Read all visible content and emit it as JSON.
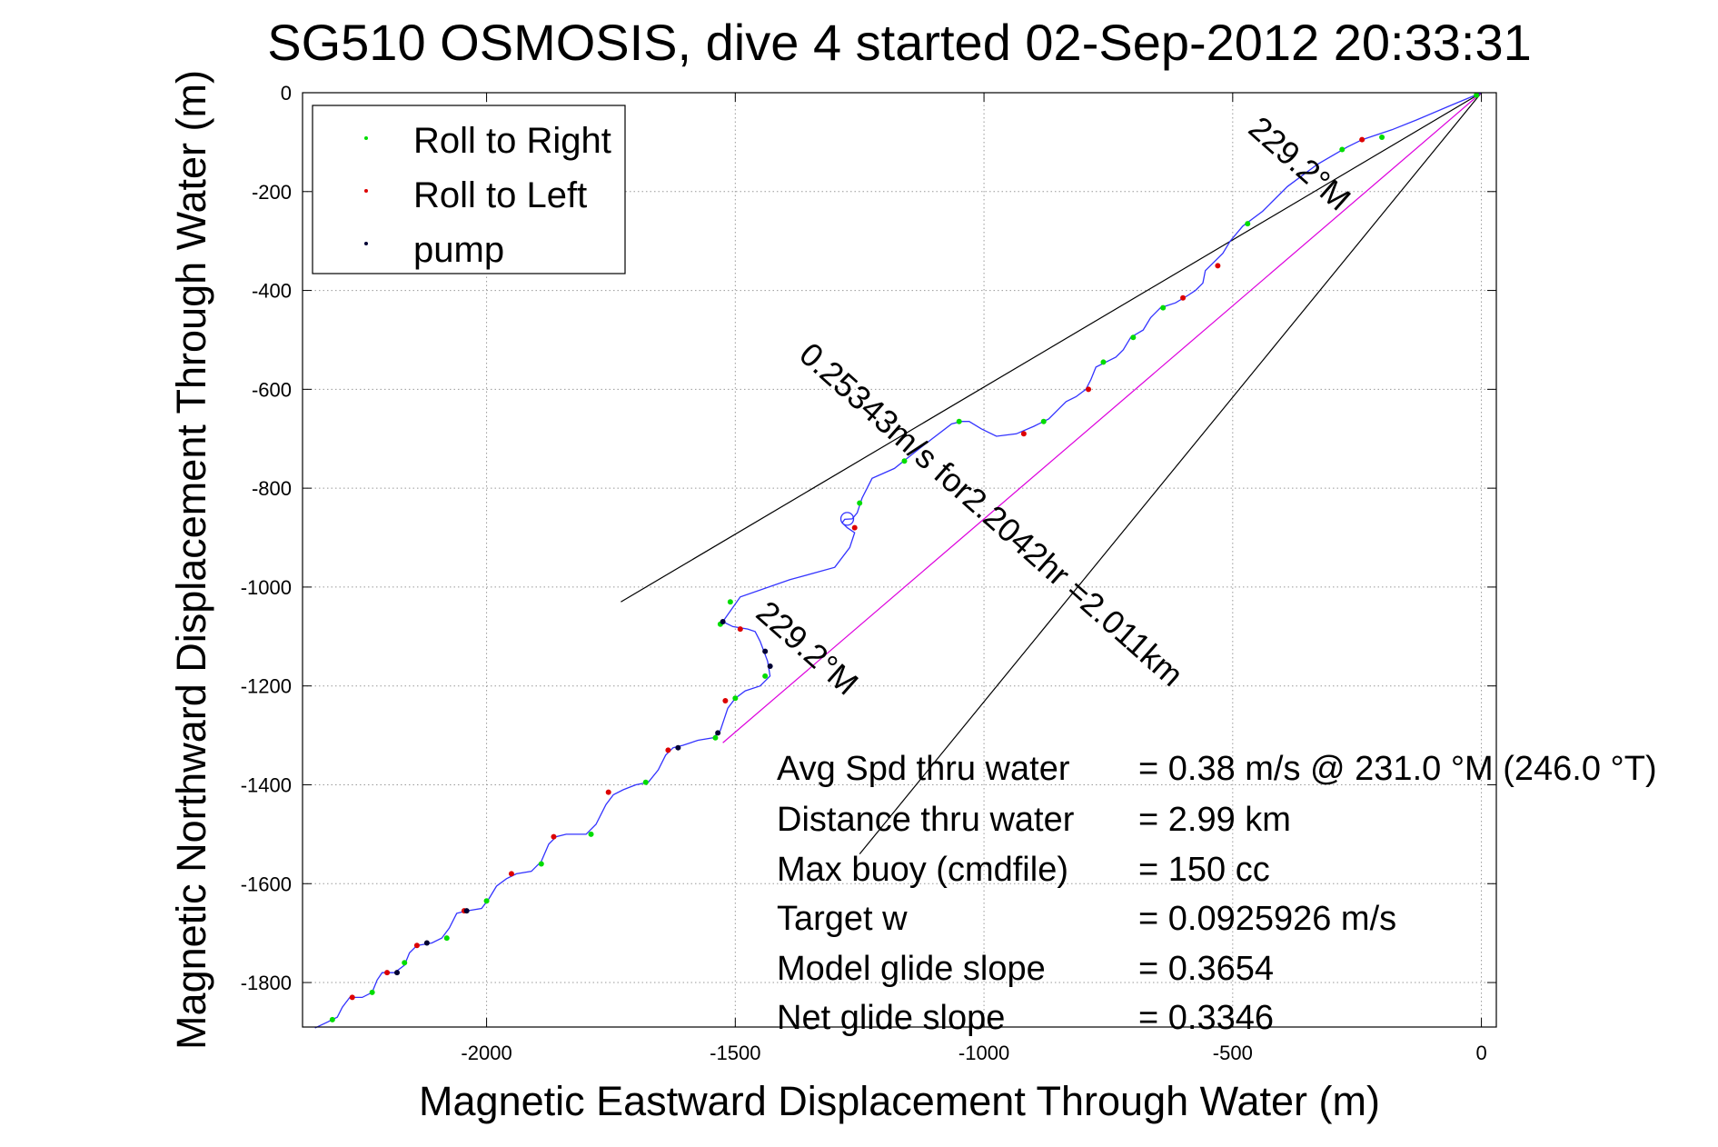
{
  "chart_data": {
    "type": "scatter",
    "title": "SG510 OSMOSIS, dive 4 started 02-Sep-2012 20:33:31",
    "xlabel": "Magnetic Eastward Displacement Through Water (m)",
    "ylabel": "Magnetic Northward Displacement Through Water (m)",
    "xlim": [
      -2370,
      30
    ],
    "ylim": [
      -1890,
      0
    ],
    "x_ticks": [
      -2000,
      -1500,
      -1000,
      -500,
      0
    ],
    "y_ticks": [
      0,
      -200,
      -400,
      -600,
      -800,
      -1000,
      -1200,
      -1400,
      -1600,
      -1800
    ],
    "grid": true,
    "legend": {
      "location": "top-left",
      "entries": [
        {
          "label": "Roll to Right",
          "color": "#00dd00"
        },
        {
          "label": "Roll to Left",
          "color": "#dd0000"
        },
        {
          "label": "pump",
          "color": "#000033"
        }
      ]
    },
    "track": {
      "color": "#3333ff",
      "points": [
        [
          0,
          0
        ],
        [
          -60,
          -25
        ],
        [
          -130,
          -55
        ],
        [
          -180,
          -75
        ],
        [
          -210,
          -85
        ],
        [
          -240,
          -95
        ],
        [
          -270,
          -110
        ],
        [
          -330,
          -145
        ],
        [
          -390,
          -190
        ],
        [
          -440,
          -240
        ],
        [
          -480,
          -270
        ],
        [
          -505,
          -300
        ],
        [
          -520,
          -325
        ],
        [
          -540,
          -345
        ],
        [
          -555,
          -360
        ],
        [
          -560,
          -385
        ],
        [
          -575,
          -400
        ],
        [
          -590,
          -410
        ],
        [
          -615,
          -425
        ],
        [
          -645,
          -435
        ],
        [
          -665,
          -455
        ],
        [
          -680,
          -480
        ],
        [
          -705,
          -495
        ],
        [
          -720,
          -520
        ],
        [
          -735,
          -535
        ],
        [
          -755,
          -545
        ],
        [
          -775,
          -555
        ],
        [
          -785,
          -580
        ],
        [
          -795,
          -600
        ],
        [
          -815,
          -615
        ],
        [
          -835,
          -625
        ],
        [
          -850,
          -640
        ],
        [
          -870,
          -660
        ],
        [
          -900,
          -675
        ],
        [
          -935,
          -690
        ],
        [
          -975,
          -695
        ],
        [
          -1005,
          -680
        ],
        [
          -1030,
          -665
        ],
        [
          -1045,
          -665
        ],
        [
          -1065,
          -670
        ],
        [
          -1130,
          -720
        ],
        [
          -1180,
          -760
        ],
        [
          -1225,
          -780
        ],
        [
          -1245,
          -820
        ],
        [
          -1255,
          -850
        ],
        [
          -1265,
          -862
        ],
        [
          -1280,
          -863
        ],
        [
          -1285,
          -870
        ],
        [
          -1275,
          -880
        ],
        [
          -1260,
          -890
        ],
        [
          -1270,
          -920
        ],
        [
          -1300,
          -960
        ],
        [
          -1390,
          -985
        ],
        [
          -1490,
          -1020
        ],
        [
          -1525,
          -1070
        ],
        [
          -1505,
          -1080
        ],
        [
          -1475,
          -1085
        ],
        [
          -1460,
          -1090
        ],
        [
          -1450,
          -1110
        ],
        [
          -1435,
          -1150
        ],
        [
          -1430,
          -1180
        ],
        [
          -1450,
          -1200
        ],
        [
          -1480,
          -1210
        ],
        [
          -1500,
          -1225
        ],
        [
          -1515,
          -1245
        ],
        [
          -1530,
          -1290
        ],
        [
          -1545,
          -1305
        ],
        [
          -1575,
          -1310
        ],
        [
          -1605,
          -1320
        ],
        [
          -1625,
          -1325
        ],
        [
          -1640,
          -1340
        ],
        [
          -1655,
          -1370
        ],
        [
          -1675,
          -1395
        ],
        [
          -1700,
          -1400
        ],
        [
          -1725,
          -1410
        ],
        [
          -1745,
          -1420
        ],
        [
          -1760,
          -1440
        ],
        [
          -1780,
          -1480
        ],
        [
          -1800,
          -1500
        ],
        [
          -1840,
          -1500
        ],
        [
          -1860,
          -1505
        ],
        [
          -1875,
          -1520
        ],
        [
          -1890,
          -1555
        ],
        [
          -1910,
          -1575
        ],
        [
          -1940,
          -1580
        ],
        [
          -1960,
          -1590
        ],
        [
          -1980,
          -1605
        ],
        [
          -1995,
          -1630
        ],
        [
          -2010,
          -1650
        ],
        [
          -2040,
          -1655
        ],
        [
          -2060,
          -1660
        ],
        [
          -2075,
          -1690
        ],
        [
          -2090,
          -1710
        ],
        [
          -2110,
          -1720
        ],
        [
          -2140,
          -1725
        ],
        [
          -2155,
          -1740
        ],
        [
          -2165,
          -1765
        ],
        [
          -2185,
          -1780
        ],
        [
          -2210,
          -1780
        ],
        [
          -2220,
          -1795
        ],
        [
          -2230,
          -1820
        ],
        [
          -2250,
          -1830
        ],
        [
          -2275,
          -1830
        ],
        [
          -2290,
          -1850
        ],
        [
          -2300,
          -1870
        ],
        [
          -2320,
          -1880
        ],
        [
          -2345,
          -1892
        ]
      ]
    },
    "roll_to_right_points": [
      [
        -10,
        -5
      ],
      [
        -200,
        -90
      ],
      [
        -280,
        -115
      ],
      [
        -470,
        -265
      ],
      [
        -640,
        -435
      ],
      [
        -700,
        -495
      ],
      [
        -760,
        -545
      ],
      [
        -880,
        -665
      ],
      [
        -1050,
        -665
      ],
      [
        -1160,
        -745
      ],
      [
        -1250,
        -830
      ],
      [
        -1510,
        -1030
      ],
      [
        -1530,
        -1075
      ],
      [
        -1440,
        -1180
      ],
      [
        -1500,
        -1225
      ],
      [
        -1540,
        -1305
      ],
      [
        -1680,
        -1395
      ],
      [
        -1790,
        -1500
      ],
      [
        -1890,
        -1560
      ],
      [
        -2000,
        -1635
      ],
      [
        -2080,
        -1710
      ],
      [
        -2165,
        -1760
      ],
      [
        -2230,
        -1820
      ],
      [
        -2310,
        -1875
      ]
    ],
    "roll_to_left_points": [
      [
        -240,
        -95
      ],
      [
        -530,
        -350
      ],
      [
        -600,
        -415
      ],
      [
        -790,
        -600
      ],
      [
        -920,
        -690
      ],
      [
        -1260,
        -880
      ],
      [
        -1490,
        -1085
      ],
      [
        -1520,
        -1230
      ],
      [
        -1635,
        -1330
      ],
      [
        -1755,
        -1415
      ],
      [
        -1865,
        -1505
      ],
      [
        -1950,
        -1580
      ],
      [
        -2045,
        -1655
      ],
      [
        -2140,
        -1725
      ],
      [
        -2200,
        -1780
      ],
      [
        -2270,
        -1830
      ]
    ],
    "pump_points": [
      [
        -1525,
        -1070
      ],
      [
        -1440,
        -1130
      ],
      [
        -1430,
        -1160
      ],
      [
        -1535,
        -1295
      ],
      [
        -1615,
        -1325
      ],
      [
        -2040,
        -1655
      ],
      [
        -2120,
        -1720
      ],
      [
        -2180,
        -1780
      ]
    ],
    "marker_circle": [
      -1275,
      -862
    ],
    "reference_lines": {
      "black": [
        [
          [
            0,
            0
          ],
          [
            -1730,
            -1030
          ]
        ],
        [
          [
            0,
            0
          ],
          [
            -1250,
            -1540
          ]
        ]
      ],
      "magenta": [
        [
          [
            0,
            0
          ],
          [
            -1525,
            -1315
          ]
        ]
      ]
    },
    "annotations": [
      {
        "text": "0.25343m/s for2.2042hr =2.011km",
        "x": -1000,
        "y": -870,
        "rotation": 41.5
      },
      {
        "text": "229.2°M",
        "x": -380,
        "y": -160,
        "rotation": 41.5
      },
      {
        "text": "229.2°M",
        "x": -1370,
        "y": -1140,
        "rotation": 41.5
      }
    ],
    "stats": [
      {
        "label": "Avg Spd thru water",
        "value": "=  0.38 m/s @ 231.0 °M (246.0 °T)"
      },
      {
        "label": "Distance thru water",
        "value": "=  2.99 km"
      },
      {
        "label": "Max buoy (cmdfile)",
        "value": "= 150 cc"
      },
      {
        "label": "Target w",
        "value": "= 0.0925926 m/s"
      },
      {
        "label": "Model glide slope",
        "value": "= 0.3654"
      },
      {
        "label": "Net glide slope",
        "value": "= 0.3346"
      }
    ]
  }
}
